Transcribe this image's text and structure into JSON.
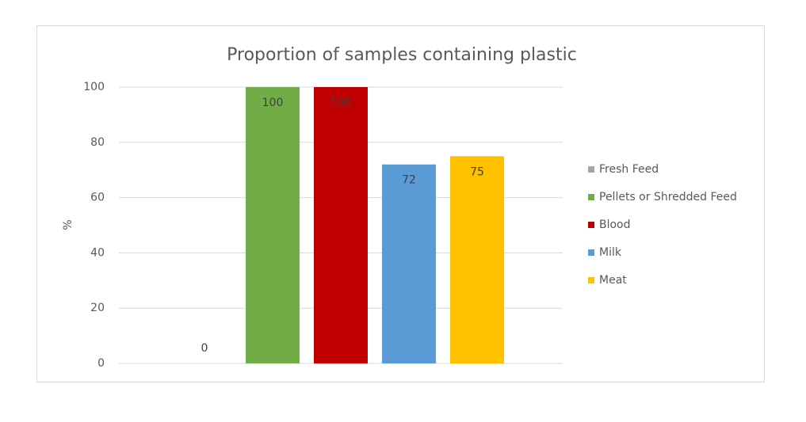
{
  "chart_data": {
    "type": "bar",
    "title": "Proportion of samples containing plastic",
    "y_label": "%",
    "series": [
      {
        "name": "Fresh Feed",
        "color": "#a5a5a5",
        "values": [
          0
        ]
      },
      {
        "name": "Pellets or Shredded Feed",
        "color": "#70ad47",
        "values": [
          100
        ]
      },
      {
        "name": "Blood",
        "color": "#c00000",
        "values": [
          100
        ]
      },
      {
        "name": "Milk",
        "color": "#5b9bd5",
        "values": [
          72
        ]
      },
      {
        "name": "Meat",
        "color": "#ffc000",
        "values": [
          75
        ]
      }
    ],
    "ylim": [
      0,
      100
    ],
    "yticks": [
      0,
      20,
      40,
      60,
      80,
      100
    ],
    "grid": true,
    "legend": "right"
  }
}
